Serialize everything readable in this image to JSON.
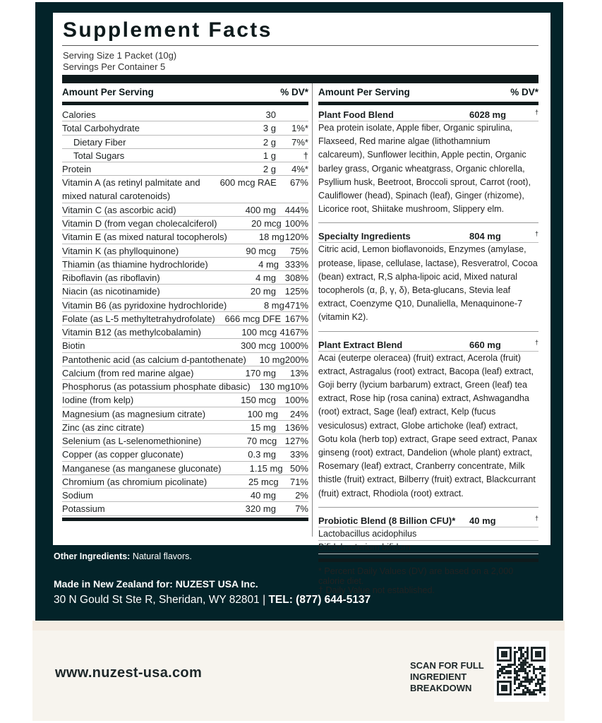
{
  "title": "Supplement Facts",
  "serving_size": "Serving Size 1 Packet (10g)",
  "servings_per_container": "Servings Per Container 5",
  "left_header": {
    "amount": "Amount Per Serving",
    "dv": "% DV*"
  },
  "right_header": {
    "amount": "Amount Per Serving",
    "dv": "% DV*"
  },
  "nutrients": [
    {
      "name": "Calories",
      "amount": "30",
      "dv": ""
    },
    {
      "name": "Total Carbohydrate",
      "amount": "3 g",
      "dv": "1%*"
    },
    {
      "name": "Dietary Fiber",
      "amount": "2 g",
      "dv": "7%*",
      "indent": true
    },
    {
      "name": "Total Sugars",
      "amount": "1 g",
      "dv": "†",
      "indent": true
    },
    {
      "name": "Protein",
      "amount": "2 g",
      "dv": "4%*"
    },
    {
      "name": "Vitamin A (as retinyl palmitate and",
      "name2": "mixed natural carotenoids)",
      "amount": "600 mcg RAE",
      "dv": "67%"
    },
    {
      "name": "Vitamin C (as ascorbic acid)",
      "amount": "400 mg",
      "dv": "444%"
    },
    {
      "name": "Vitamin D (from vegan cholecalciferol)",
      "amount": "20 mcg",
      "dv": "100%"
    },
    {
      "name": "Vitamin E (as mixed natural tocopherols)",
      "amount": "18 mg",
      "dv": "120%"
    },
    {
      "name": "Vitamin K (as phylloquinone)",
      "amount": "90 mcg",
      "dv": "75%"
    },
    {
      "name": "Thiamin (as thiamine hydrochloride)",
      "amount": "4 mg",
      "dv": "333%"
    },
    {
      "name": "Riboflavin (as riboflavin)",
      "amount": "4 mg",
      "dv": "308%"
    },
    {
      "name": "Niacin (as nicotinamide)",
      "amount": "20 mg",
      "dv": "125%"
    },
    {
      "name": "Vitamin B6 (as pyridoxine hydrochloride)",
      "amount": "8 mg",
      "dv": "471%"
    },
    {
      "name": "Folate (as L-5 methyltetrahydrofolate)",
      "amount": "666 mcg DFE",
      "dv": "167%"
    },
    {
      "name": "Vitamin B12 (as methylcobalamin)",
      "amount": "100 mcg",
      "dv": "4167%"
    },
    {
      "name": "Biotin",
      "amount": "300 mcg",
      "dv": "1000%"
    },
    {
      "name": "Pantothenic acid (as calcium d-pantothenate)",
      "amount": "10 mg",
      "dv": "200%"
    },
    {
      "name": "Calcium (from red marine algae)",
      "amount": "170 mg",
      "dv": "13%"
    },
    {
      "name": "Phosphorus (as potassium phosphate dibasic)",
      "amount": "130 mg",
      "dv": "10%"
    },
    {
      "name": "Iodine (from kelp)",
      "amount": "150 mcg",
      "dv": "100%"
    },
    {
      "name": "Magnesium (as magnesium citrate)",
      "amount": "100 mg",
      "dv": "24%"
    },
    {
      "name": "Zinc (as zinc citrate)",
      "amount": "15 mg",
      "dv": "136%"
    },
    {
      "name": "Selenium (as L-selenomethionine)",
      "amount": "70 mcg",
      "dv": "127%"
    },
    {
      "name": "Copper (as copper gluconate)",
      "amount": "0.3 mg",
      "dv": "33%"
    },
    {
      "name": "Manganese (as manganese gluconate)",
      "amount": "1.15 mg",
      "dv": "50%"
    },
    {
      "name": "Chromium (as chromium picolinate)",
      "amount": "25 mcg",
      "dv": "71%"
    },
    {
      "name": "Sodium",
      "amount": "40 mg",
      "dv": "2%"
    },
    {
      "name": "Potassium",
      "amount": "320 mg",
      "dv": "7%"
    }
  ],
  "blends": [
    {
      "name": "Plant Food Blend",
      "amount": "6028 mg",
      "dv": "†",
      "text": "Pea protein isolate, Apple fiber, Organic spirulina, Flaxseed, Red marine algae (lithothamnium calcareum), Sunflower lecithin, Apple pectin, Organic barley grass, Organic wheatgrass, Organic chlorella, Psyllium husk, Beetroot, Broccoli sprout, Carrot (root), Cauliflower (head), Spinach (leaf), Ginger (rhizome), Licorice root, Shiitake mushroom, Slippery elm."
    },
    {
      "name": "Specialty Ingredients",
      "amount": "804 mg",
      "dv": "†",
      "text": "Citric acid, Lemon bioflavonoids, Enzymes (amylase, protease, lipase, cellulase, lactase), Resveratrol, Cocoa (bean) extract, R,S alpha-lipoic acid, Mixed natural tocopherols (α, β, γ, δ), Beta-glucans, Stevia leaf extract, Coenzyme Q10, Dunaliella, Menaquinone-7 (vitamin K2)."
    },
    {
      "name": "Plant Extract Blend",
      "amount": "660 mg",
      "dv": "†",
      "text": "Acai (euterpe oleracea) (fruit) extract, Acerola (fruit) extract, Astragalus (root) extract, Bacopa (leaf) extract, Goji berry (lycium barbarum) extract, Green (leaf) tea extract, Rose hip (rosa canina) extract, Ashwagandha (root) extract, Sage (leaf) extract, Kelp (fucus vesiculosus) extract, Globe artichoke (leaf) extract, Gotu kola (herb top) extract, Grape seed extract, Panax ginseng (root) extract, Dandelion (whole plant) extract, Rosemary (leaf) extract, Cranberry concentrate, Milk thistle (fruit) extract, Bilberry (fruit) extract, Blackcurrant (fruit) extract, Rhodiola (root) extract."
    }
  ],
  "probiotic": {
    "name": "Probiotic Blend (8 Billion CFU)*",
    "amount": "40 mg",
    "dv": "†",
    "items": [
      "Lactobacillus acidophilus",
      "Bifidobacterium bifidum"
    ]
  },
  "footnotes": [
    "* Percent Daily Values (DV) are based on a 2,000 calorie diet.",
    "† Daily Value not established."
  ],
  "other_ingredients": {
    "label": "Other Ingredients:",
    "value": " Natural flavors."
  },
  "made_in": "Made in New Zealand for: NUZEST USA Inc.",
  "address": "30 N Gould St Ste R, Sheridan, WY 82801 | ",
  "tel": "TEL: (877) 644-5137",
  "website": "www.nuzest-usa.com",
  "scan": [
    "SCAN FOR FULL",
    "INGREDIENT",
    "BREAKDOWN"
  ],
  "colors": {
    "panel": "#032329",
    "cream": "#f7f4ee",
    "rule": "#0e1a1c"
  }
}
